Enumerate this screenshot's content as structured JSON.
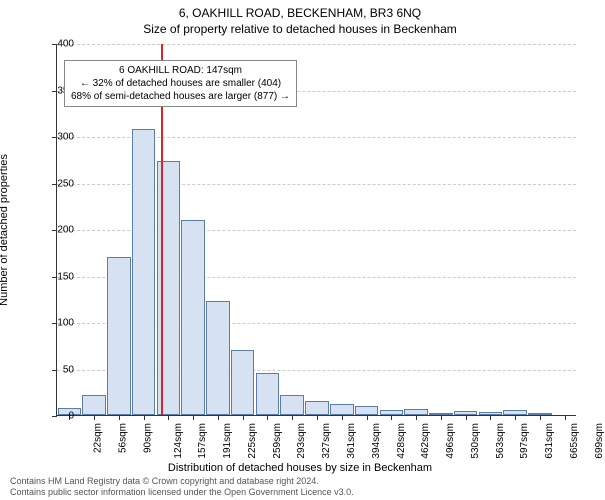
{
  "title": "6, OAKHILL ROAD, BECKENHAM, BR3 6NQ",
  "subtitle": "Size of property relative to detached houses in Beckenham",
  "chart": {
    "type": "histogram",
    "ylabel": "Number of detached properties",
    "xlabel": "Distribution of detached houses by size in Beckenham",
    "ylim": [
      0,
      400
    ],
    "yticks": [
      0,
      50,
      100,
      150,
      200,
      250,
      300,
      350,
      400
    ],
    "xtick_labels": [
      "22sqm",
      "56sqm",
      "90sqm",
      "124sqm",
      "157sqm",
      "191sqm",
      "225sqm",
      "259sqm",
      "293sqm",
      "327sqm",
      "361sqm",
      "394sqm",
      "428sqm",
      "462sqm",
      "496sqm",
      "530sqm",
      "563sqm",
      "597sqm",
      "631sqm",
      "665sqm",
      "699sqm"
    ],
    "bar_fill": "#d6e2f2",
    "bar_stroke": "#5b7ea8",
    "grid_color": "#cccccc",
    "background_color": "#ffffff",
    "marker_line_x_index": 3.7,
    "marker_line_color": "#d62728",
    "values": [
      8,
      22,
      170,
      308,
      273,
      210,
      123,
      70,
      45,
      22,
      15,
      12,
      10,
      5,
      6,
      2,
      4,
      3,
      5,
      2,
      0
    ],
    "bar_width_ratio": 0.95
  },
  "annotation": {
    "line1": "6 OAKHILL ROAD: 147sqm",
    "line2": "← 32% of detached houses are smaller (404)",
    "line3": "68% of semi-detached houses are larger (877) →",
    "box_border": "#888888",
    "box_bg": "#ffffff",
    "fontsize": 10
  },
  "footer": {
    "line1": "Contains HM Land Registry data © Crown copyright and database right 2024.",
    "line2": "Contains public sector information licensed under the Open Government Licence v3.0."
  }
}
